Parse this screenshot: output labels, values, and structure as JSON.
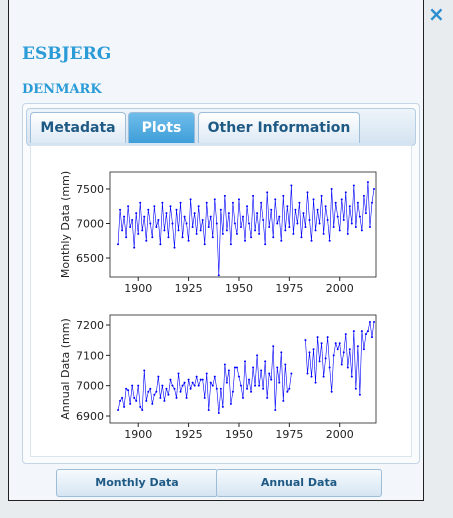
{
  "header": {
    "title": "ESBJERG",
    "subtitle": "DENMARK",
    "close": "×"
  },
  "tabs": [
    "Metadata",
    "Plots",
    "Other Information"
  ],
  "buttons": [
    "Monthly Data",
    "Annual Data"
  ],
  "chart_data": [
    {
      "type": "line",
      "ylabel": "Monthly Data (mm)",
      "color": "#0000ff",
      "x": [
        1890,
        1891,
        1892,
        1893,
        1894,
        1895,
        1896,
        1897,
        1898,
        1899,
        1900,
        1901,
        1902,
        1903,
        1904,
        1905,
        1906,
        1907,
        1908,
        1909,
        1910,
        1911,
        1912,
        1913,
        1914,
        1915,
        1916,
        1917,
        1918,
        1919,
        1920,
        1921,
        1922,
        1923,
        1924,
        1925,
        1926,
        1927,
        1928,
        1929,
        1930,
        1931,
        1932,
        1933,
        1934,
        1935,
        1936,
        1937,
        1938,
        1939,
        1940,
        1941,
        1942,
        1943,
        1944,
        1945,
        1946,
        1947,
        1948,
        1949,
        1950,
        1951,
        1952,
        1953,
        1954,
        1955,
        1956,
        1957,
        1958,
        1959,
        1960,
        1961,
        1962,
        1963,
        1964,
        1965,
        1966,
        1967,
        1968,
        1969,
        1970,
        1971,
        1972,
        1973,
        1974,
        1975,
        1976,
        1977,
        1978,
        1979,
        1980,
        1981,
        1982,
        1983,
        1984,
        1985,
        1986,
        1987,
        1988,
        1989,
        1990,
        1991,
        1992,
        1993,
        1994,
        1995,
        1996,
        1997,
        1998,
        1999,
        2000,
        2001,
        2002,
        2003,
        2004,
        2005,
        2006,
        2007,
        2008,
        2009,
        2010,
        2011,
        2012,
        2013,
        2014,
        2015,
        2016,
        2017
      ],
      "values": [
        6700,
        7200,
        6900,
        7100,
        6800,
        7250,
        6950,
        7050,
        6650,
        7150,
        6850,
        7300,
        6900,
        7100,
        6750,
        7200,
        7000,
        6800,
        7250,
        6950,
        7050,
        6700,
        7300,
        6900,
        7150,
        6800,
        7250,
        7000,
        6650,
        7200,
        6900,
        7300,
        6800,
        7100,
        7000,
        6750,
        7350,
        6950,
        7150,
        6850,
        7250,
        6900,
        7050,
        6700,
        7300,
        6950,
        7100,
        6800,
        7350,
        7000,
        6250,
        7200,
        6850,
        7400,
        6900,
        7150,
        6700,
        7300,
        7000,
        6850,
        7350,
        6950,
        7100,
        6750,
        7250,
        7000,
        6800,
        7400,
        6900,
        7150,
        6850,
        7300,
        7050,
        6700,
        7450,
        6950,
        7200,
        6800,
        7350,
        7000,
        7100,
        6750,
        7400,
        6900,
        7250,
        6950,
        7550,
        6850,
        7200,
        7000,
        7300,
        6800,
        7150,
        6950,
        7450,
        7050,
        6750,
        7350,
        6900,
        7200,
        7000,
        7400,
        6850,
        7250,
        7050,
        6750,
        7500,
        6950,
        7300,
        7100,
        6900,
        7350,
        7050,
        7450,
        6850,
        7250,
        7000,
        7550,
        6950,
        7300,
        7100,
        6900,
        7400,
        7150,
        7600,
        6950,
        7300,
        7500
      ],
      "xlim": [
        1886,
        2018
      ],
      "xticks": [
        1900,
        1925,
        1950,
        1975,
        2000
      ],
      "ylim": [
        6225,
        7746
      ],
      "yticks": [
        6500,
        7000,
        7500
      ]
    },
    {
      "type": "line",
      "ylabel": "Annual Data (mm)",
      "color": "#0000ff",
      "x": [
        1890,
        1891,
        1892,
        1893,
        1894,
        1895,
        1896,
        1897,
        1898,
        1899,
        1900,
        1901,
        1902,
        1903,
        1904,
        1905,
        1906,
        1907,
        1908,
        1909,
        1910,
        1911,
        1912,
        1913,
        1914,
        1915,
        1916,
        1917,
        1918,
        1919,
        1920,
        1921,
        1922,
        1923,
        1924,
        1925,
        1926,
        1927,
        1928,
        1929,
        1930,
        1931,
        1932,
        1933,
        1934,
        1935,
        1936,
        1937,
        1938,
        1939,
        1940,
        1941,
        1942,
        1943,
        1944,
        1945,
        1946,
        1947,
        1948,
        1949,
        1950,
        1951,
        1952,
        1953,
        1954,
        1955,
        1956,
        1957,
        1958,
        1959,
        1960,
        1961,
        1962,
        1963,
        1964,
        1965,
        1966,
        1967,
        1968,
        1969,
        1970,
        1971,
        1972,
        1973,
        1974,
        1975,
        1976,
        1977,
        1978,
        1979,
        1980,
        1981,
        1982,
        1983,
        1984,
        1985,
        1986,
        1987,
        1988,
        1989,
        1990,
        1991,
        1992,
        1993,
        1994,
        1995,
        1996,
        1997,
        1998,
        1999,
        2000,
        2001,
        2002,
        2003,
        2004,
        2005,
        2006,
        2007,
        2008,
        2009,
        2010,
        2011,
        2012,
        2013,
        2014,
        2015,
        2016,
        2017
      ],
      "values": [
        6920,
        6950,
        6960,
        6930,
        6990,
        6985,
        6940,
        7000,
        6960,
        6950,
        7000,
        6930,
        6920,
        7050,
        6950,
        6980,
        6990,
        6940,
        6970,
        6980,
        7030,
        6960,
        7000,
        6950,
        6990,
        6970,
        7020,
        7000,
        6990,
        6960,
        7040,
        6980,
        7000,
        7010,
        6960,
        7020,
        6990,
        7010,
        7000,
        7030,
        7000,
        7020,
        7020,
        6960,
        7040,
        6920,
        7010,
        7000,
        7030,
        6990,
        6910,
        6990,
        6930,
        7070,
        7010,
        7050,
        6940,
        6980,
        7060,
        7060,
        7030,
        7000,
        6960,
        7080,
        6990,
        7020,
        6980,
        7060,
        7000,
        7100,
        7000,
        7050,
        6990,
        7080,
        6960,
        7040,
        7020,
        7130,
        6920,
        7060,
        7010,
        7110,
        6950,
        7070,
        6980,
        6990,
        7040,
        null,
        null,
        null,
        null,
        null,
        null,
        7150,
        7040,
        7110,
        7030,
        7120,
        7010,
        7160,
        7080,
        7140,
        7030,
        7090,
        7160,
        7060,
        6980,
        7100,
        7140,
        7120,
        7140,
        7070,
        7110,
        7170,
        7060,
        7120,
        7030,
        7180,
        6990,
        7130,
        6970,
        7180,
        7120,
        7170,
        7180,
        7210,
        7160,
        7210
      ],
      "xlim": [
        1886,
        2018
      ],
      "xticks": [
        1900,
        1925,
        1950,
        1975,
        2000
      ],
      "ylim": [
        6877,
        7233
      ],
      "yticks": [
        6900,
        7000,
        7100,
        7200
      ]
    }
  ]
}
